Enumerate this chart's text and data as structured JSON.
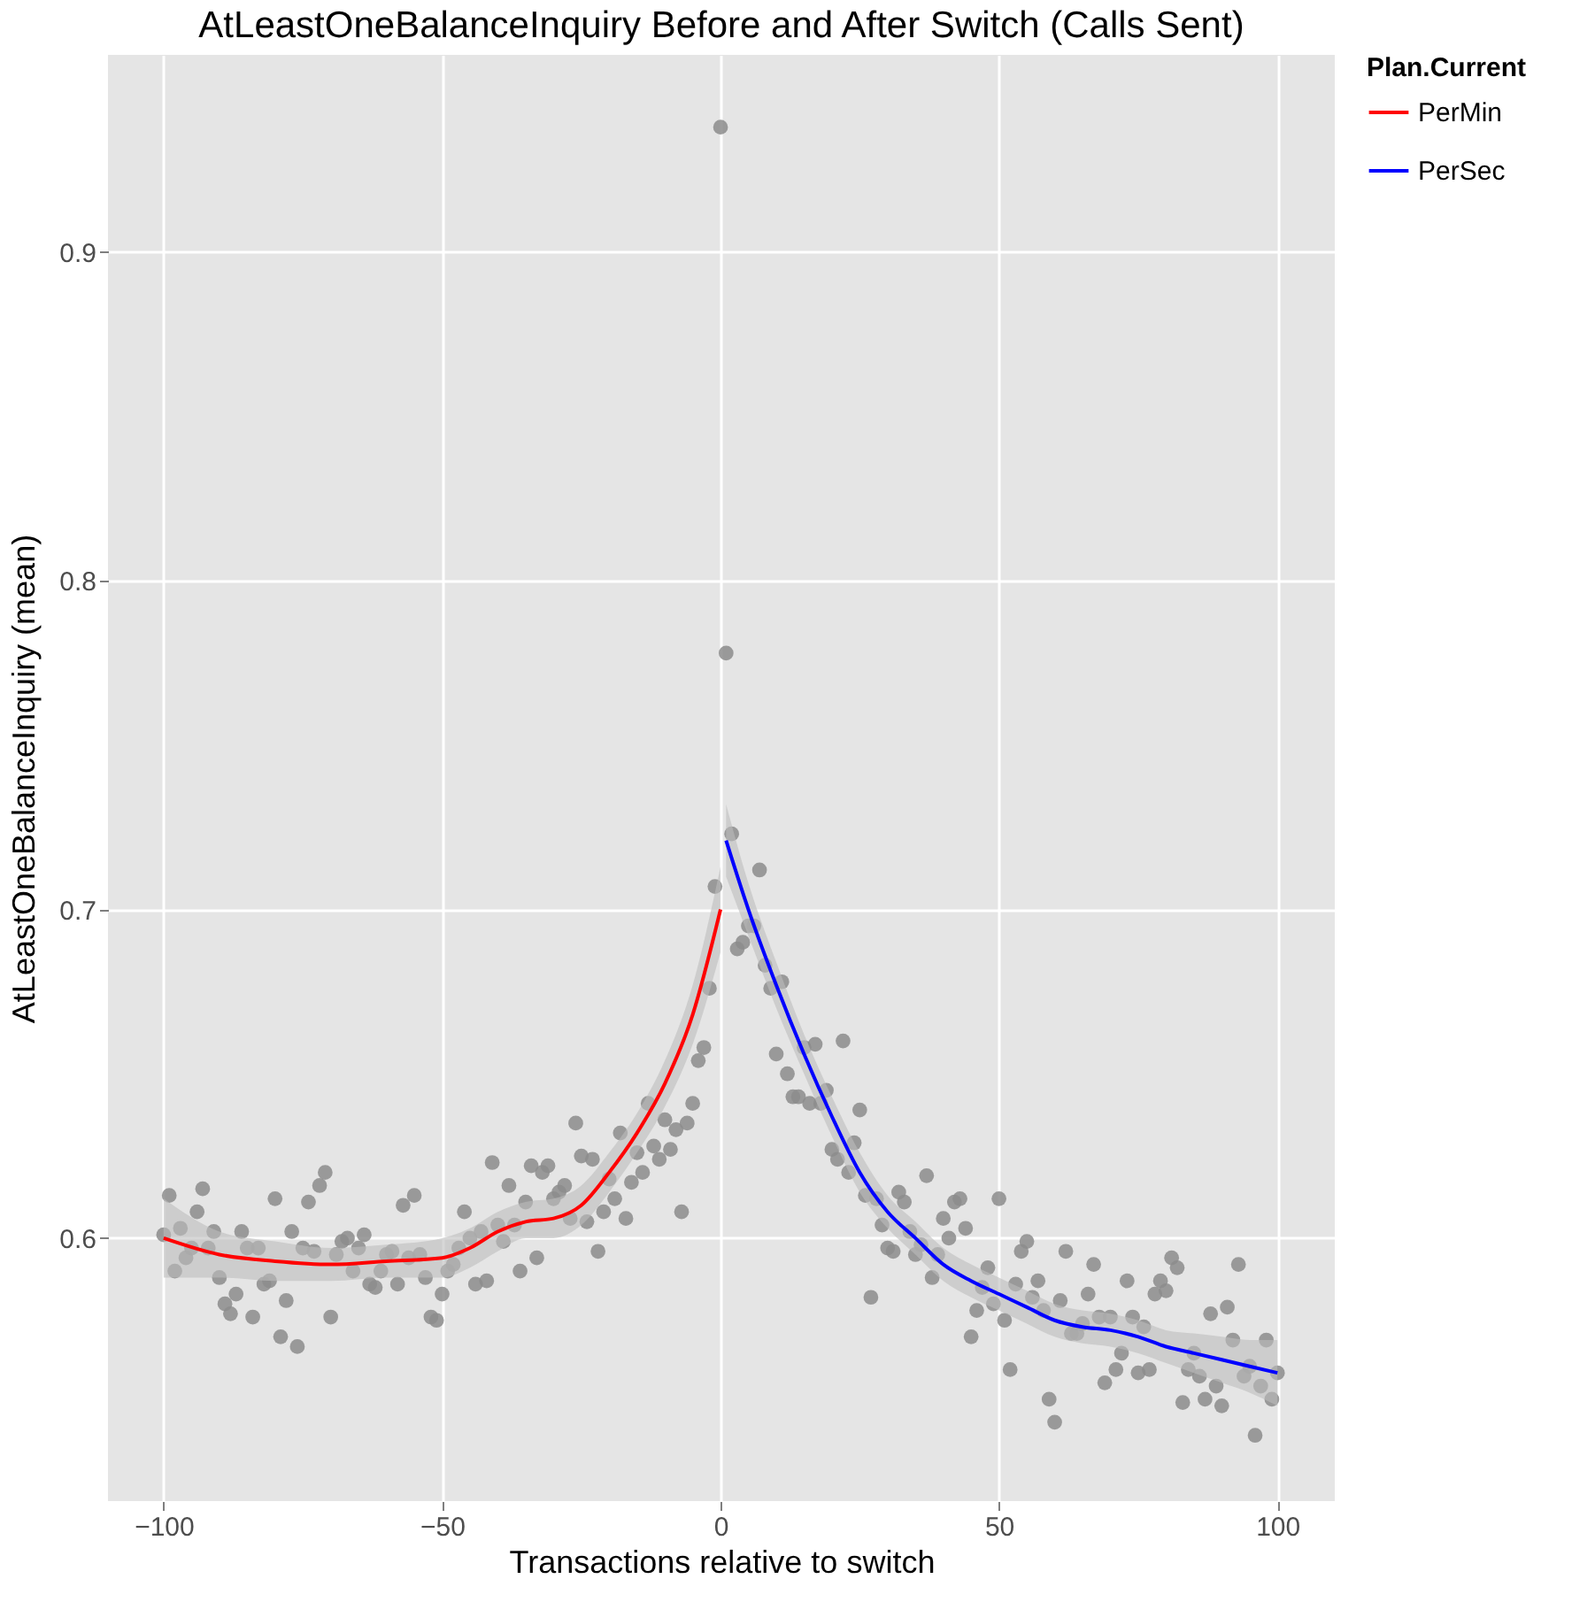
{
  "chart_data": {
    "type": "scatter",
    "title": "AtLeastOneBalanceInquiry Before and After Switch (Calls Sent)",
    "xlabel": "Transactions relative to switch",
    "ylabel": "AtLeastOneBalanceInquiry (mean)",
    "legend_title": "Plan.Current",
    "xlim": [
      -110,
      110.3
    ],
    "ylim": [
      0.52,
      0.96
    ],
    "xticks": [
      -100,
      -50,
      0,
      50,
      100
    ],
    "yticks": [
      0.6,
      0.7,
      0.8,
      0.9
    ],
    "grid": true,
    "legend": "right",
    "series": [
      {
        "color": "#8c8c8c",
        "x": [
          -100,
          -99,
          -98,
          -97,
          -96,
          -95,
          -94,
          -93,
          -92,
          -91,
          -90,
          -89,
          -88,
          -87,
          -86,
          -85,
          -84,
          -83,
          -82,
          -81,
          -80,
          -79,
          -78,
          -77,
          -76,
          -75,
          -74,
          -73,
          -72,
          -71,
          -70,
          -69,
          -68,
          -67,
          -66,
          -65,
          -64,
          -63,
          -62,
          -61,
          -60,
          -59,
          -58,
          -57,
          -56,
          -55,
          -54,
          -53,
          -52,
          -51,
          -50,
          -49,
          -48,
          -47,
          -46,
          -45,
          -44,
          -43,
          -42,
          -41,
          -40,
          -39,
          -38,
          -37,
          -36,
          -35,
          -34,
          -33,
          -32,
          -31,
          -30,
          -29,
          -28,
          -27,
          -26,
          -25,
          -24,
          -23,
          -22,
          -21,
          -20,
          -19,
          -18,
          -17,
          -16,
          -15,
          -14,
          -13,
          -12,
          -11,
          -10,
          -9,
          -8,
          -7,
          -6,
          -5,
          -4,
          -3,
          -2,
          -1,
          0,
          1,
          2,
          3,
          4,
          5,
          6,
          7,
          8,
          9,
          10,
          11,
          12,
          13,
          14,
          15,
          16,
          17,
          18,
          19,
          20,
          21,
          22,
          23,
          24,
          25,
          26,
          27,
          28,
          29,
          30,
          31,
          32,
          33,
          34,
          35,
          36,
          37,
          38,
          39,
          40,
          41,
          42,
          43,
          44,
          45,
          46,
          47,
          48,
          49,
          50,
          51,
          52,
          53,
          54,
          55,
          56,
          57,
          58,
          59,
          60,
          61,
          62,
          63,
          64,
          65,
          66,
          67,
          68,
          69,
          70,
          71,
          72,
          73,
          74,
          75,
          76,
          77,
          78,
          79,
          80,
          81,
          82,
          83,
          84,
          85,
          86,
          87,
          88,
          89,
          90,
          91,
          92,
          93,
          94,
          95,
          96,
          97,
          98,
          99,
          100
        ],
        "values": [
          0.601,
          0.613,
          0.59,
          0.603,
          0.594,
          0.597,
          0.608,
          0.615,
          0.597,
          0.602,
          0.588,
          0.58,
          0.577,
          0.583,
          0.602,
          0.597,
          0.576,
          0.597,
          0.586,
          0.587,
          0.612,
          0.57,
          0.581,
          0.602,
          0.567,
          0.597,
          0.611,
          0.596,
          0.616,
          0.62,
          0.576,
          0.595,
          0.599,
          0.6,
          0.59,
          0.597,
          0.601,
          0.586,
          0.585,
          0.59,
          0.595,
          0.596,
          0.586,
          0.61,
          0.594,
          0.613,
          0.595,
          0.588,
          0.576,
          0.575,
          0.583,
          0.59,
          0.592,
          0.597,
          0.608,
          0.6,
          0.586,
          0.602,
          0.587,
          0.623,
          0.604,
          0.599,
          0.616,
          0.604,
          0.59,
          0.611,
          0.622,
          0.594,
          0.62,
          0.622,
          0.612,
          0.614,
          0.616,
          0.606,
          0.635,
          0.625,
          0.605,
          0.624,
          0.596,
          0.608,
          0.618,
          0.612,
          0.632,
          0.606,
          0.617,
          0.626,
          0.62,
          0.641,
          0.628,
          0.624,
          0.636,
          0.627,
          0.633,
          0.608,
          0.635,
          0.641,
          0.654,
          0.658,
          0.676,
          0.707,
          0.938,
          0.778,
          0.723,
          0.688,
          0.69,
          0.695,
          0.695,
          0.712,
          0.683,
          0.676,
          0.656,
          0.678,
          0.65,
          0.643,
          0.643,
          0.658,
          0.641,
          0.659,
          0.641,
          0.645,
          0.627,
          0.624,
          0.66,
          0.62,
          0.629,
          0.639,
          0.613,
          0.582,
          0.612,
          0.604,
          0.597,
          0.596,
          0.614,
          0.611,
          0.602,
          0.595,
          0.598,
          0.619,
          0.588,
          0.595,
          0.606,
          0.6,
          0.611,
          0.612,
          0.603,
          0.57,
          0.578,
          0.585,
          0.591,
          0.58,
          0.612,
          0.575,
          0.56,
          0.586,
          0.596,
          0.599,
          0.582,
          0.587,
          0.578,
          0.551,
          0.544,
          0.581,
          0.596,
          0.571,
          0.571,
          0.574,
          0.583,
          0.592,
          0.576,
          0.556,
          0.576,
          0.56,
          0.565,
          0.587,
          0.576,
          0.559,
          0.573,
          0.56,
          0.583,
          0.587,
          0.584,
          0.594,
          0.591,
          0.55,
          0.56,
          0.565,
          0.558,
          0.551,
          0.577,
          0.555,
          0.549,
          0.579,
          0.569,
          0.592,
          0.558,
          0.561,
          0.54,
          0.555,
          0.569,
          0.551,
          0.559
        ]
      },
      {
        "name": "PerMin",
        "type": "line",
        "color": "#ff0000",
        "x": [
          -100,
          -90,
          -80,
          -70,
          -60,
          -50,
          -45,
          -40,
          -35,
          -30,
          -25,
          -20,
          -15,
          -10,
          -5,
          0
        ],
        "values": [
          0.6,
          0.595,
          0.593,
          0.592,
          0.593,
          0.594,
          0.597,
          0.602,
          0.605,
          0.606,
          0.61,
          0.62,
          0.632,
          0.647,
          0.668,
          0.7
        ],
        "lower": [
          0.588,
          0.588,
          0.587,
          0.587,
          0.588,
          0.588,
          0.591,
          0.596,
          0.6,
          0.6,
          0.604,
          0.614,
          0.626,
          0.64,
          0.659,
          0.687
        ],
        "upper": [
          0.612,
          0.602,
          0.599,
          0.597,
          0.598,
          0.6,
          0.603,
          0.608,
          0.611,
          0.612,
          0.616,
          0.626,
          0.638,
          0.654,
          0.677,
          0.713
        ]
      },
      {
        "name": "PerSec",
        "type": "line",
        "color": "#0000ff",
        "x": [
          1,
          5,
          10,
          15,
          20,
          25,
          30,
          35,
          40,
          45,
          50,
          55,
          60,
          65,
          70,
          75,
          80,
          85,
          90,
          95,
          100
        ],
        "values": [
          0.721,
          0.7,
          0.677,
          0.656,
          0.637,
          0.62,
          0.608,
          0.6,
          0.592,
          0.587,
          0.583,
          0.579,
          0.575,
          0.573,
          0.572,
          0.57,
          0.567,
          0.565,
          0.563,
          0.561,
          0.559
        ],
        "lower": [
          0.71,
          0.692,
          0.67,
          0.65,
          0.631,
          0.614,
          0.603,
          0.595,
          0.587,
          0.582,
          0.578,
          0.574,
          0.57,
          0.568,
          0.567,
          0.565,
          0.562,
          0.559,
          0.556,
          0.553,
          0.549
        ],
        "upper": [
          0.732,
          0.708,
          0.684,
          0.662,
          0.643,
          0.626,
          0.613,
          0.605,
          0.597,
          0.592,
          0.588,
          0.584,
          0.58,
          0.578,
          0.577,
          0.575,
          0.572,
          0.571,
          0.57,
          0.569,
          0.569
        ]
      }
    ]
  }
}
